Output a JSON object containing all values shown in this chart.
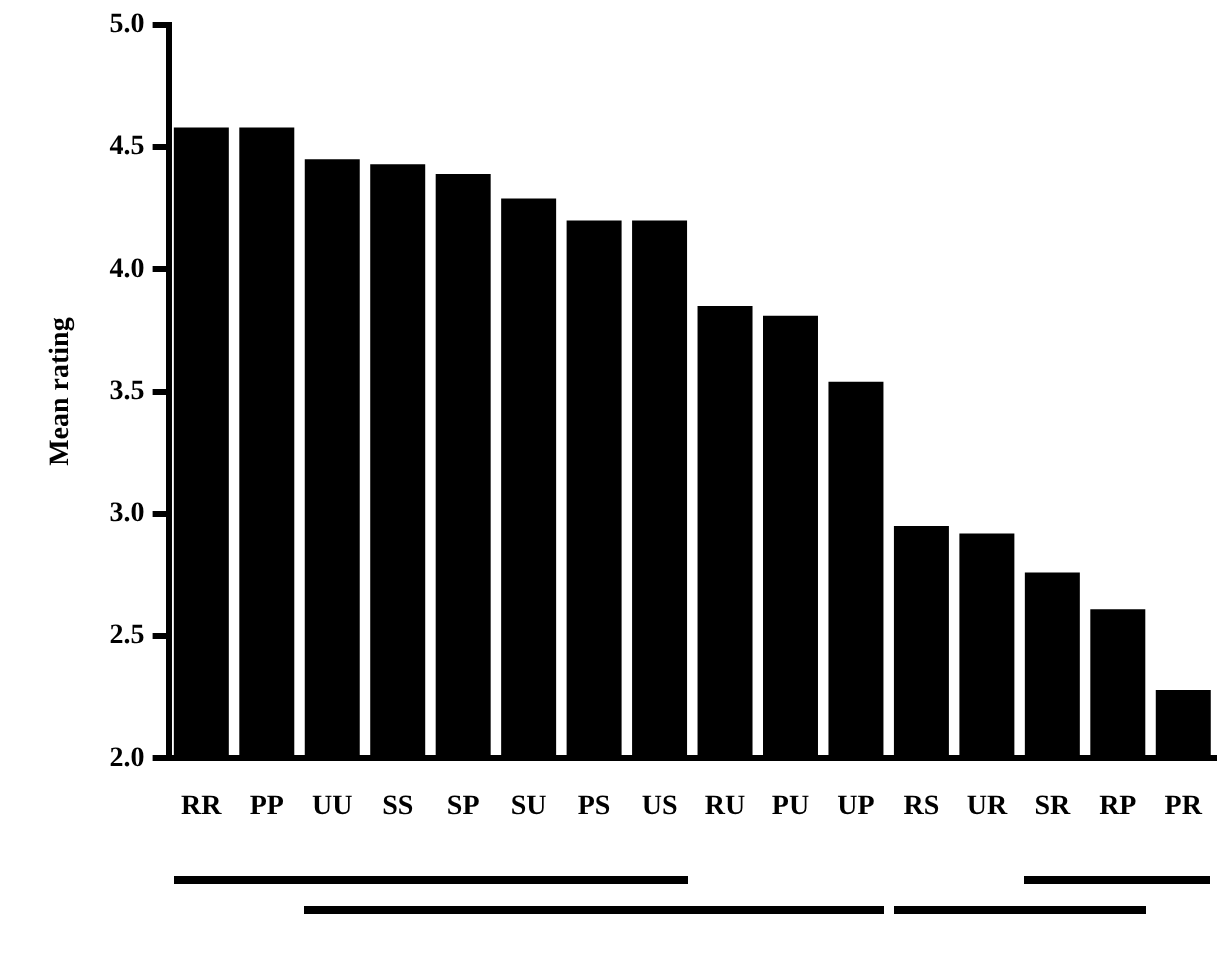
{
  "chart_data": {
    "type": "bar",
    "ylabel": "Mean rating",
    "categories": [
      "RR",
      "PP",
      "UU",
      "SS",
      "SP",
      "SU",
      "PS",
      "US",
      "RU",
      "PU",
      "UP",
      "RS",
      "UR",
      "SR",
      "RP",
      "PR"
    ],
    "values": [
      4.58,
      4.58,
      4.45,
      4.43,
      4.39,
      4.29,
      4.2,
      4.2,
      3.85,
      3.81,
      3.54,
      2.95,
      2.92,
      2.76,
      2.61,
      2.28
    ],
    "color": "#000000",
    "ylim": [
      2.0,
      5.0
    ],
    "yticks": [
      {
        "value": 2,
        "label": "2.0"
      },
      {
        "value": 2.5,
        "label": "2.5"
      },
      {
        "value": 3,
        "label": "3.0"
      },
      {
        "value": 3.5,
        "label": "3.5"
      },
      {
        "value": 4,
        "label": "4.0"
      },
      {
        "value": 4.5,
        "label": "4.5"
      },
      {
        "value": 5,
        "label": "5.0"
      }
    ],
    "grid": false,
    "legend": false
  }
}
